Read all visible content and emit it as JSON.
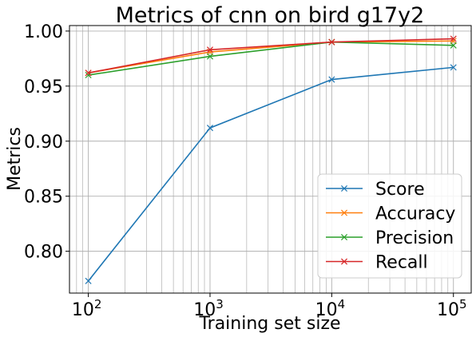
{
  "chart_data": {
    "type": "line",
    "title": "Metrics of cnn on bird g17y2",
    "xlabel": "Training set size",
    "ylabel": "Metrics",
    "x_scale": "log",
    "x": [
      100,
      1000,
      10000,
      100000
    ],
    "xlim": [
      70,
      140000
    ],
    "ylim": [
      0.762,
      1.005
    ],
    "x_ticks": [
      {
        "value": 100,
        "base": "10",
        "exp": "2"
      },
      {
        "value": 1000,
        "base": "10",
        "exp": "3"
      },
      {
        "value": 10000,
        "base": "10",
        "exp": "4"
      },
      {
        "value": 100000,
        "base": "10",
        "exp": "5"
      }
    ],
    "y_ticks": [
      {
        "value": 0.8,
        "label": "0.80"
      },
      {
        "value": 0.85,
        "label": "0.85"
      },
      {
        "value": 0.9,
        "label": "0.90"
      },
      {
        "value": 0.95,
        "label": "0.95"
      },
      {
        "value": 1.0,
        "label": "1.00"
      }
    ],
    "grid": true,
    "grid_minor": true,
    "legend_position": "bottom-right",
    "marker": "x",
    "series": [
      {
        "name": "Score",
        "color": "#1f77b4",
        "values": [
          0.773,
          0.912,
          0.956,
          0.967
        ]
      },
      {
        "name": "Accuracy",
        "color": "#ff7f0e",
        "values": [
          0.962,
          0.981,
          0.99,
          0.991
        ]
      },
      {
        "name": "Precision",
        "color": "#2ca02c",
        "values": [
          0.96,
          0.977,
          0.99,
          0.987
        ]
      },
      {
        "name": "Recall",
        "color": "#d62728",
        "values": [
          0.962,
          0.983,
          0.99,
          0.993
        ]
      }
    ]
  }
}
